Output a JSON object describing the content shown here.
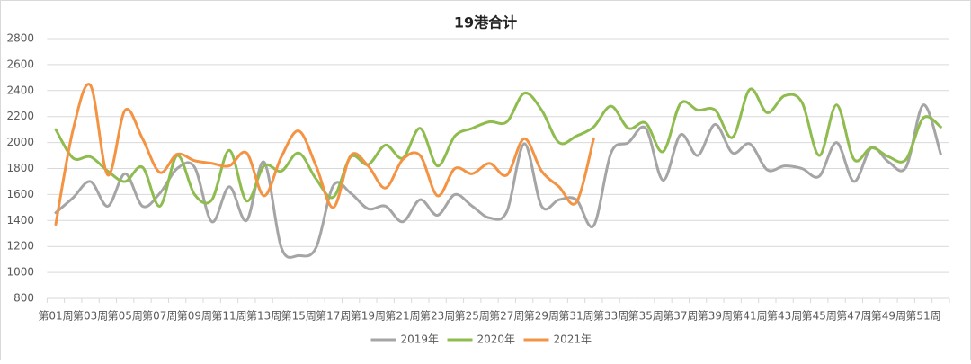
{
  "chart_data": {
    "type": "line",
    "title": "19港合计",
    "categories": [
      "第01周",
      null,
      "第03周",
      null,
      "第05周",
      null,
      "第07周",
      null,
      "第09周",
      null,
      "第11周",
      null,
      "第13周",
      null,
      "第15周",
      null,
      "第17周",
      null,
      "第19周",
      null,
      "第21周",
      null,
      "第23周",
      null,
      "第25周",
      null,
      "第27周",
      null,
      "第29周",
      null,
      "第31周",
      null,
      "第33周",
      null,
      "第35周",
      null,
      "第37周",
      null,
      "第39周",
      null,
      "第41周",
      null,
      "第43周",
      null,
      "第45周",
      null,
      "第47周",
      null,
      "第49周",
      null,
      "第51周",
      null
    ],
    "series": [
      {
        "name": "2019年",
        "color": "#a5a5a5",
        "values": [
          1460,
          1575,
          1700,
          1510,
          1760,
          1510,
          1610,
          1800,
          1810,
          1390,
          1660,
          1400,
          1850,
          1190,
          1130,
          1190,
          1670,
          1610,
          1490,
          1510,
          1390,
          1560,
          1440,
          1600,
          1510,
          1420,
          1470,
          1990,
          1510,
          1560,
          1560,
          1360,
          1920,
          2000,
          2110,
          1710,
          2060,
          1900,
          2140,
          1920,
          1990,
          1790,
          1820,
          1800,
          1740,
          2000,
          1700,
          1960,
          1850,
          1810,
          2290,
          1910
        ]
      },
      {
        "name": "2020年",
        "color": "#8fbc4f",
        "values": [
          2100,
          1880,
          1890,
          1780,
          1700,
          1810,
          1510,
          1900,
          1600,
          1560,
          1940,
          1550,
          1820,
          1780,
          1920,
          1720,
          1580,
          1890,
          1830,
          1980,
          1880,
          2110,
          1820,
          2050,
          2110,
          2160,
          2160,
          2380,
          2250,
          2000,
          2050,
          2120,
          2280,
          2110,
          2150,
          1930,
          2300,
          2250,
          2250,
          2040,
          2410,
          2230,
          2360,
          2310,
          1900,
          2290,
          1870,
          1960,
          1890,
          1870,
          2190,
          2120
        ]
      },
      {
        "name": "2021年",
        "color": "#f39343",
        "values": [
          1370,
          2100,
          2440,
          1750,
          2250,
          2030,
          1770,
          1910,
          1860,
          1840,
          1820,
          1920,
          1590,
          1890,
          2090,
          1820,
          1500,
          1900,
          1820,
          1650,
          1870,
          1900,
          1590,
          1800,
          1760,
          1840,
          1750,
          2030,
          1780,
          1660,
          1540,
          2030,
          null,
          null,
          null,
          null,
          null,
          null,
          null,
          null,
          null,
          null,
          null,
          null,
          null,
          null,
          null,
          null,
          null,
          null,
          null,
          null
        ]
      }
    ],
    "ylim": [
      800,
      2800
    ],
    "yticks": [
      800,
      1000,
      1200,
      1400,
      1600,
      1800,
      2000,
      2200,
      2400,
      2600,
      2800
    ],
    "grid": true,
    "legend": "bottom"
  }
}
